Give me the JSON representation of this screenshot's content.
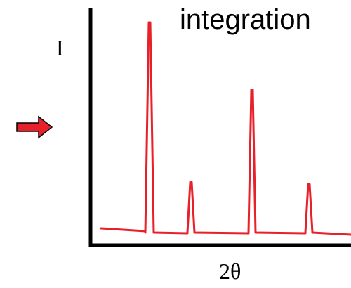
{
  "title": "integration",
  "y_axis_label": "I",
  "x_axis_label": "2θ",
  "colors": {
    "trace": "#e8202a",
    "axes": "#000000",
    "arrow_fill": "#e8202a",
    "arrow_stroke": "#000000"
  },
  "icons": {
    "pointer": "right-arrow-icon"
  },
  "chart_data": {
    "type": "line",
    "title": "integration",
    "xlabel": "2θ",
    "ylabel": "I",
    "grid": false,
    "series": [
      {
        "peaks": [
          {
            "position": 1,
            "relative_intensity": 1.0
          },
          {
            "position": 2,
            "relative_intensity": 0.24
          },
          {
            "position": 3,
            "relative_intensity": 0.68
          },
          {
            "position": 4,
            "relative_intensity": 0.23
          }
        ]
      }
    ]
  }
}
